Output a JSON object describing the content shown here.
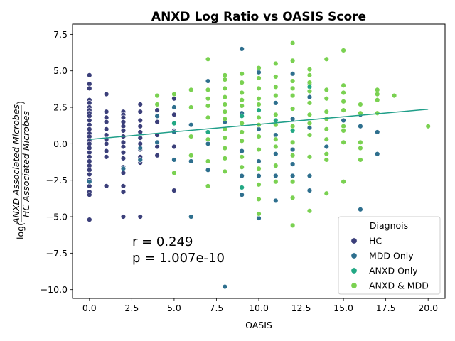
{
  "chart_data": {
    "type": "scatter",
    "title": "ANXD Log Ratio vs OASIS Score",
    "xlabel": "OASIS",
    "ylabel_prefix": "log(",
    "ylabel_numerator": "ANXD Associated Microbes",
    "ylabel_denominator": "HC Associated Microbes",
    "ylabel_suffix": ")",
    "xlim": [
      -1,
      21
    ],
    "ylim": [
      -10.6,
      8.2
    ],
    "xticks": [
      0.0,
      2.5,
      5.0,
      7.5,
      10.0,
      12.5,
      15.0,
      17.5,
      20.0
    ],
    "xtick_labels": [
      "0.0",
      "2.5",
      "5.0",
      "7.5",
      "10.0",
      "12.5",
      "15.0",
      "17.5",
      "20.0"
    ],
    "yticks": [
      -10.0,
      -7.5,
      -5.0,
      -2.5,
      0.0,
      2.5,
      5.0,
      7.5
    ],
    "ytick_labels": [
      "−10.0",
      "−7.5",
      "−5.0",
      "−2.5",
      "0.0",
      "2.5",
      "5.0",
      "7.5"
    ],
    "grid": false,
    "legend": {
      "title": "Diagnois",
      "placement": "lower-right"
    },
    "annotations": {
      "r": "r = 0.249",
      "p": "p = 1.007e-10"
    },
    "regression_line": {
      "x": [
        0,
        20
      ],
      "y": [
        0.3,
        2.37
      ],
      "color": "#1f9e89"
    },
    "series": [
      {
        "name": "HC",
        "color": "#3b3f7a",
        "points": [
          [
            0,
            4.7
          ],
          [
            0,
            4.1
          ],
          [
            0,
            3.8
          ],
          [
            0,
            3.0
          ],
          [
            0,
            2.8
          ],
          [
            0,
            2.5
          ],
          [
            0,
            2.3
          ],
          [
            0,
            2.1
          ],
          [
            0,
            1.9
          ],
          [
            0,
            1.6
          ],
          [
            0,
            1.3
          ],
          [
            0,
            1.0
          ],
          [
            0,
            0.7
          ],
          [
            0,
            0.5
          ],
          [
            0,
            0.2
          ],
          [
            0,
            0.0
          ],
          [
            0,
            -0.3
          ],
          [
            0,
            -0.6
          ],
          [
            0,
            -0.9
          ],
          [
            0,
            -1.2
          ],
          [
            0,
            -1.5
          ],
          [
            0,
            -1.8
          ],
          [
            0,
            -2.1
          ],
          [
            0,
            -2.5
          ],
          [
            0,
            -2.9
          ],
          [
            0,
            -3.3
          ],
          [
            0,
            -3.5
          ],
          [
            0,
            -5.2
          ],
          [
            1,
            3.4
          ],
          [
            1,
            2.2
          ],
          [
            1,
            1.8
          ],
          [
            1,
            1.5
          ],
          [
            1,
            1.0
          ],
          [
            1,
            0.6
          ],
          [
            1,
            0.3
          ],
          [
            1,
            0.0
          ],
          [
            1,
            -0.5
          ],
          [
            1,
            -0.9
          ],
          [
            1,
            -2.9
          ],
          [
            2,
            2.2
          ],
          [
            2,
            2.0
          ],
          [
            2,
            1.8
          ],
          [
            2,
            1.5
          ],
          [
            2,
            1.2
          ],
          [
            2,
            0.9
          ],
          [
            2,
            0.5
          ],
          [
            2,
            0.1
          ],
          [
            2,
            -0.2
          ],
          [
            2,
            -0.6
          ],
          [
            2,
            -1.0
          ],
          [
            2,
            -1.6
          ],
          [
            2,
            -2.0
          ],
          [
            2,
            -2.9
          ],
          [
            2,
            -3.3
          ],
          [
            2,
            -5.0
          ],
          [
            3,
            2.7
          ],
          [
            3,
            2.2
          ],
          [
            3,
            1.6
          ],
          [
            3,
            1.2
          ],
          [
            3,
            0.8
          ],
          [
            3,
            0.4
          ],
          [
            3,
            0.0
          ],
          [
            3,
            -0.4
          ],
          [
            3,
            -0.9
          ],
          [
            3,
            -1.3
          ],
          [
            3,
            -5.0
          ],
          [
            4,
            2.3
          ],
          [
            4,
            1.5
          ],
          [
            4,
            0.6
          ],
          [
            4,
            -0.2
          ],
          [
            4,
            -0.8
          ],
          [
            5,
            3.1
          ],
          [
            5,
            2.0
          ],
          [
            5,
            0.9
          ],
          [
            5,
            -0.2
          ],
          [
            5,
            -3.2
          ]
        ]
      },
      {
        "name": "MDD Only",
        "color": "#2e6f8e",
        "points": [
          [
            0,
            -2.6
          ],
          [
            2,
            -1.7
          ],
          [
            3,
            -1.1
          ],
          [
            3,
            -0.3
          ],
          [
            4,
            1.9
          ],
          [
            4,
            0.1
          ],
          [
            5,
            2.5
          ],
          [
            5,
            0.8
          ],
          [
            5,
            -1.1
          ],
          [
            6,
            1.3
          ],
          [
            6,
            -1.2
          ],
          [
            6,
            -5.0
          ],
          [
            7,
            4.3
          ],
          [
            7,
            0.0
          ],
          [
            7,
            -1.8
          ],
          [
            8,
            1.5
          ],
          [
            8,
            -9.8
          ],
          [
            9,
            6.5
          ],
          [
            9,
            2.1
          ],
          [
            9,
            -0.5
          ],
          [
            9,
            -2.2
          ],
          [
            9,
            -3.5
          ],
          [
            10,
            4.9
          ],
          [
            10,
            1.0
          ],
          [
            10,
            -1.2
          ],
          [
            10,
            -2.2
          ],
          [
            10,
            -5.1
          ],
          [
            11,
            2.8
          ],
          [
            11,
            0.6
          ],
          [
            11,
            -0.7
          ],
          [
            11,
            -2.2
          ],
          [
            11,
            -3.9
          ],
          [
            12,
            4.8
          ],
          [
            12,
            1.7
          ],
          [
            12,
            -0.4
          ],
          [
            12,
            -1.4
          ],
          [
            12,
            -2.2
          ],
          [
            13,
            4.1
          ],
          [
            13,
            3.2
          ],
          [
            13,
            1.1
          ],
          [
            13,
            -2.2
          ],
          [
            13,
            -3.2
          ],
          [
            14,
            -0.2
          ],
          [
            15,
            1.6
          ],
          [
            16,
            2.0
          ],
          [
            16,
            1.2
          ],
          [
            16,
            -4.5
          ],
          [
            17,
            2.1
          ],
          [
            17,
            0.8
          ],
          [
            17,
            -0.7
          ]
        ]
      },
      {
        "name": "ANXD Only",
        "color": "#22a884",
        "points": [
          [
            5,
            1.4
          ],
          [
            7,
            0.8
          ],
          [
            9,
            1.9
          ],
          [
            9,
            -3.0
          ],
          [
            10,
            2.3
          ],
          [
            11,
            1.6
          ],
          [
            12,
            0.9
          ],
          [
            13,
            3.9
          ]
        ]
      },
      {
        "name": "ANXD & MDD",
        "color": "#7ad151",
        "points": [
          [
            4,
            3.3
          ],
          [
            4,
            2.7
          ],
          [
            5,
            3.4
          ],
          [
            5,
            -2.0
          ],
          [
            6,
            3.7
          ],
          [
            6,
            2.5
          ],
          [
            6,
            0.5
          ],
          [
            6,
            -0.8
          ],
          [
            7,
            5.8
          ],
          [
            7,
            3.7
          ],
          [
            7,
            3.1
          ],
          [
            7,
            2.6
          ],
          [
            7,
            1.8
          ],
          [
            7,
            0.3
          ],
          [
            7,
            -1.2
          ],
          [
            7,
            -2.9
          ],
          [
            8,
            4.7
          ],
          [
            8,
            4.4
          ],
          [
            8,
            3.8
          ],
          [
            8,
            3.2
          ],
          [
            8,
            2.7
          ],
          [
            8,
            2.2
          ],
          [
            8,
            1.7
          ],
          [
            8,
            1.0
          ],
          [
            8,
            0.4
          ],
          [
            8,
            -0.3
          ],
          [
            8,
            -1.0
          ],
          [
            8,
            -1.9
          ],
          [
            9,
            4.8
          ],
          [
            9,
            4.2
          ],
          [
            9,
            3.5
          ],
          [
            9,
            3.0
          ],
          [
            9,
            2.6
          ],
          [
            9,
            1.4
          ],
          [
            9,
            0.8
          ],
          [
            9,
            0.2
          ],
          [
            9,
            -0.9
          ],
          [
            9,
            -1.6
          ],
          [
            10,
            5.2
          ],
          [
            10,
            4.5
          ],
          [
            10,
            3.8
          ],
          [
            10,
            3.1
          ],
          [
            10,
            2.7
          ],
          [
            10,
            1.8
          ],
          [
            10,
            1.3
          ],
          [
            10,
            0.5
          ],
          [
            10,
            -0.4
          ],
          [
            10,
            -1.7
          ],
          [
            10,
            -2.8
          ],
          [
            10,
            -3.8
          ],
          [
            10,
            -4.8
          ],
          [
            11,
            5.5
          ],
          [
            11,
            4.6
          ],
          [
            11,
            3.9
          ],
          [
            11,
            3.3
          ],
          [
            11,
            2.0
          ],
          [
            11,
            1.3
          ],
          [
            11,
            0.3
          ],
          [
            11,
            -0.2
          ],
          [
            11,
            -1.5
          ],
          [
            11,
            -2.6
          ],
          [
            12,
            6.9
          ],
          [
            12,
            5.7
          ],
          [
            12,
            4.3
          ],
          [
            12,
            3.8
          ],
          [
            12,
            3.3
          ],
          [
            12,
            2.4
          ],
          [
            12,
            1.2
          ],
          [
            12,
            0.1
          ],
          [
            12,
            -0.8
          ],
          [
            12,
            -2.6
          ],
          [
            12,
            -3.7
          ],
          [
            12,
            -5.6
          ],
          [
            13,
            5.1
          ],
          [
            13,
            4.7
          ],
          [
            13,
            4.2
          ],
          [
            13,
            3.6
          ],
          [
            13,
            2.8
          ],
          [
            13,
            2.0
          ],
          [
            13,
            1.4
          ],
          [
            13,
            0.6
          ],
          [
            13,
            -0.9
          ],
          [
            13,
            -4.6
          ],
          [
            14,
            5.8
          ],
          [
            14,
            3.7
          ],
          [
            14,
            3.1
          ],
          [
            14,
            2.2
          ],
          [
            14,
            1.7
          ],
          [
            14,
            1.0
          ],
          [
            14,
            0.3
          ],
          [
            14,
            -0.7
          ],
          [
            14,
            -1.1
          ],
          [
            14,
            -3.4
          ],
          [
            15,
            6.4
          ],
          [
            15,
            4.0
          ],
          [
            15,
            3.5
          ],
          [
            15,
            2.9
          ],
          [
            15,
            2.3
          ],
          [
            15,
            1.2
          ],
          [
            15,
            0.9
          ],
          [
            15,
            0.1
          ],
          [
            15,
            -2.6
          ],
          [
            16,
            2.7
          ],
          [
            16,
            2.1
          ],
          [
            16,
            0.1
          ],
          [
            16,
            -0.3
          ],
          [
            16,
            -1.1
          ],
          [
            17,
            3.7
          ],
          [
            17,
            3.4
          ],
          [
            17,
            3.0
          ],
          [
            17,
            2.1
          ],
          [
            18,
            3.3
          ],
          [
            20,
            1.2
          ]
        ]
      }
    ]
  }
}
